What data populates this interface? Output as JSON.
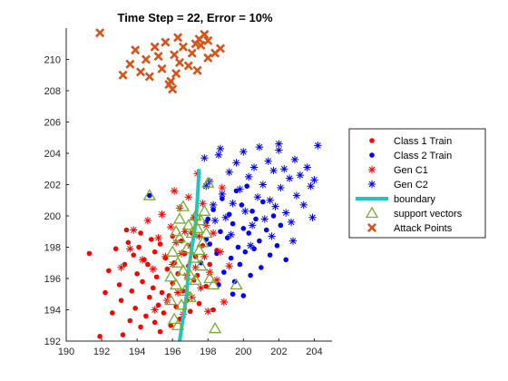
{
  "chart_data": {
    "type": "scatter",
    "title": "Time Step = 22, Error = 10%",
    "xlabel": "",
    "ylabel": "",
    "xlim": [
      190,
      205
    ],
    "ylim": [
      192,
      212
    ],
    "x_ticks": [
      190,
      192,
      194,
      196,
      198,
      200,
      202,
      204
    ],
    "y_ticks": [
      192,
      194,
      196,
      198,
      200,
      202,
      204,
      206,
      208,
      210
    ],
    "grid": false,
    "legend_position": "right",
    "legend": [
      "Class 1 Train",
      "Class 2 Train",
      "Gen C1",
      "Gen C2",
      "boundary",
      "support vectors",
      "Attack Points"
    ],
    "series": [
      {
        "name": "Class 1 Train",
        "marker": "dot",
        "color": "#ff0000",
        "points": [
          [
            191.3,
            197.6
          ],
          [
            191.9,
            192.3
          ],
          [
            192.2,
            195.1
          ],
          [
            192.4,
            196.5
          ],
          [
            192.6,
            193.8
          ],
          [
            192.8,
            197.9
          ],
          [
            193.0,
            195.6
          ],
          [
            193.1,
            194.6
          ],
          [
            193.2,
            192.4
          ],
          [
            193.3,
            196.9
          ],
          [
            193.5,
            198.3
          ],
          [
            193.6,
            193.3
          ],
          [
            193.7,
            195.2
          ],
          [
            193.8,
            197.5
          ],
          [
            193.9,
            194.1
          ],
          [
            194.0,
            196.3
          ],
          [
            194.1,
            198.0
          ],
          [
            194.2,
            192.9
          ],
          [
            194.3,
            195.8
          ],
          [
            194.4,
            197.2
          ],
          [
            194.5,
            193.6
          ],
          [
            194.6,
            196.9
          ],
          [
            194.7,
            194.8
          ],
          [
            194.8,
            198.5
          ],
          [
            194.9,
            195.4
          ],
          [
            195.0,
            193.2
          ],
          [
            195.0,
            197.7
          ],
          [
            195.1,
            196.1
          ],
          [
            195.2,
            194.3
          ],
          [
            195.3,
            198.2
          ],
          [
            195.4,
            195.1
          ],
          [
            195.5,
            193.8
          ],
          [
            195.6,
            197.3
          ],
          [
            195.7,
            196.6
          ],
          [
            195.8,
            194.9
          ],
          [
            195.9,
            193.0
          ],
          [
            196.0,
            198.7
          ],
          [
            196.0,
            195.7
          ],
          [
            196.1,
            197.0
          ],
          [
            196.2,
            194.2
          ],
          [
            196.3,
            196.3
          ],
          [
            196.4,
            193.4
          ],
          [
            196.5,
            198.4
          ],
          [
            196.6,
            195.2
          ],
          [
            196.7,
            197.6
          ],
          [
            196.8,
            194.6
          ],
          [
            196.9,
            196.8
          ],
          [
            197.0,
            193.9
          ],
          [
            197.1,
            198.9
          ],
          [
            197.2,
            195.9
          ],
          [
            197.3,
            197.4
          ],
          [
            197.4,
            196.2
          ],
          [
            197.5,
            194.4
          ],
          [
            197.7,
            198.1
          ],
          [
            197.9,
            195.5
          ],
          [
            198.1,
            196.9
          ],
          [
            198.3,
            194.0
          ],
          [
            198.5,
            197.8
          ],
          [
            195.3,
            192.6
          ],
          [
            194.2,
            198.9
          ],
          [
            193.4,
            199.1
          ]
        ]
      },
      {
        "name": "Class 2 Train",
        "marker": "dot",
        "color": "#0000ff",
        "points": [
          [
            194.7,
            201.3
          ],
          [
            197.6,
            197.0
          ],
          [
            197.9,
            199.6
          ],
          [
            198.1,
            198.2
          ],
          [
            198.3,
            200.4
          ],
          [
            198.5,
            197.6
          ],
          [
            198.7,
            199.0
          ],
          [
            198.8,
            201.1
          ],
          [
            198.9,
            196.4
          ],
          [
            199.1,
            198.6
          ],
          [
            199.2,
            200.1
          ],
          [
            199.3,
            197.3
          ],
          [
            199.4,
            199.5
          ],
          [
            199.5,
            195.8
          ],
          [
            199.6,
            201.6
          ],
          [
            199.7,
            198.0
          ],
          [
            199.8,
            196.9
          ],
          [
            199.9,
            200.7
          ],
          [
            200.0,
            199.2
          ],
          [
            200.1,
            197.7
          ],
          [
            200.2,
            201.9
          ],
          [
            200.3,
            198.9
          ],
          [
            200.4,
            196.2
          ],
          [
            200.5,
            200.3
          ],
          [
            200.6,
            197.9
          ],
          [
            200.7,
            199.8
          ],
          [
            200.9,
            198.4
          ],
          [
            201.0,
            196.7
          ],
          [
            201.1,
            200.9
          ],
          [
            201.3,
            199.1
          ],
          [
            201.5,
            197.5
          ],
          [
            201.7,
            200.0
          ],
          [
            201.9,
            198.1
          ],
          [
            202.1,
            199.4
          ],
          [
            202.4,
            197.2
          ],
          [
            200.0,
            194.9
          ],
          [
            199.4,
            195.0
          ],
          [
            198.6,
            195.6
          ],
          [
            197.9,
            198.5
          ],
          [
            198.0,
            199.8
          ]
        ]
      },
      {
        "name": "Gen C1",
        "marker": "star",
        "color": "#ff0000",
        "points": [
          [
            193.1,
            196.7
          ],
          [
            193.6,
            197.9
          ],
          [
            193.8,
            199.1
          ],
          [
            194.3,
            197.2
          ],
          [
            194.6,
            199.7
          ],
          [
            194.9,
            196.6
          ],
          [
            195.2,
            198.6
          ],
          [
            195.4,
            200.1
          ],
          [
            195.6,
            197.4
          ],
          [
            195.7,
            194.6
          ],
          [
            195.9,
            199.3
          ],
          [
            196.0,
            196.9
          ],
          [
            196.2,
            198.3
          ],
          [
            196.3,
            195.1
          ],
          [
            196.4,
            200.5
          ],
          [
            196.5,
            197.6
          ],
          [
            196.6,
            193.7
          ],
          [
            196.7,
            199.0
          ],
          [
            196.8,
            196.2
          ],
          [
            196.9,
            201.2
          ],
          [
            197.0,
            198.1
          ],
          [
            197.1,
            194.8
          ],
          [
            197.2,
            199.9
          ],
          [
            197.3,
            196.7
          ],
          [
            197.4,
            202.7
          ],
          [
            197.5,
            198.7
          ],
          [
            197.6,
            195.4
          ],
          [
            197.7,
            200.8
          ],
          [
            197.8,
            197.4
          ],
          [
            197.9,
            199.4
          ],
          [
            198.0,
            193.9
          ],
          [
            198.1,
            196.4
          ],
          [
            198.3,
            198.9
          ],
          [
            198.5,
            195.9
          ],
          [
            198.7,
            197.7
          ],
          [
            198.9,
            194.5
          ],
          [
            199.2,
            196.8
          ],
          [
            198.8,
            201.8
          ],
          [
            196.1,
            201.6
          ],
          [
            195.0,
            194.0
          ]
        ]
      },
      {
        "name": "Gen C2",
        "marker": "star",
        "color": "#0000ff",
        "points": [
          [
            197.8,
            203.7
          ],
          [
            198.1,
            202.2
          ],
          [
            198.3,
            200.7
          ],
          [
            198.6,
            203.9
          ],
          [
            198.8,
            201.4
          ],
          [
            199.0,
            199.9
          ],
          [
            199.2,
            202.8
          ],
          [
            199.4,
            200.8
          ],
          [
            199.6,
            203.4
          ],
          [
            199.8,
            201.7
          ],
          [
            200.0,
            204.1
          ],
          [
            200.1,
            200.3
          ],
          [
            200.3,
            202.5
          ],
          [
            200.5,
            199.4
          ],
          [
            200.6,
            203.1
          ],
          [
            200.8,
            201.2
          ],
          [
            200.9,
            204.4
          ],
          [
            201.1,
            202.0
          ],
          [
            201.2,
            199.8
          ],
          [
            201.4,
            203.5
          ],
          [
            201.5,
            201.0
          ],
          [
            201.7,
            202.9
          ],
          [
            201.8,
            200.6
          ],
          [
            202.0,
            204.2
          ],
          [
            202.1,
            201.8
          ],
          [
            202.3,
            203.0
          ],
          [
            202.4,
            200.2
          ],
          [
            202.6,
            202.4
          ],
          [
            202.7,
            199.6
          ],
          [
            202.9,
            203.6
          ],
          [
            203.0,
            201.3
          ],
          [
            203.2,
            202.6
          ],
          [
            203.4,
            200.7
          ],
          [
            203.6,
            203.1
          ],
          [
            203.8,
            201.9
          ],
          [
            204.0,
            202.3
          ],
          [
            204.2,
            204.5
          ],
          [
            202.0,
            204.6
          ],
          [
            201.6,
            198.7
          ],
          [
            200.4,
            198.1
          ],
          [
            199.3,
            198.8
          ],
          [
            198.4,
            199.7
          ],
          [
            197.9,
            201.9
          ],
          [
            198.7,
            204.3
          ],
          [
            202.8,
            198.4
          ],
          [
            203.9,
            199.9
          ]
        ]
      },
      {
        "name": "boundary",
        "marker": "line",
        "color": "#1ec6c0",
        "points": [
          [
            196.4,
            192.0
          ],
          [
            196.6,
            193.5
          ],
          [
            196.8,
            195.0
          ],
          [
            196.9,
            196.5
          ],
          [
            197.1,
            198.0
          ],
          [
            197.3,
            199.5
          ],
          [
            197.4,
            201.0
          ],
          [
            197.5,
            203.0
          ]
        ]
      },
      {
        "name": "support vectors",
        "marker": "triangle",
        "color": "#77ac30",
        "points": [
          [
            194.7,
            201.3
          ],
          [
            195.9,
            196.1
          ],
          [
            195.9,
            194.6
          ],
          [
            196.0,
            197.7
          ],
          [
            196.1,
            193.4
          ],
          [
            196.2,
            199.0
          ],
          [
            196.2,
            195.6
          ],
          [
            196.3,
            197.0
          ],
          [
            196.3,
            193.0
          ],
          [
            196.4,
            198.6
          ],
          [
            196.5,
            194.3
          ],
          [
            196.6,
            200.6
          ],
          [
            196.6,
            196.5
          ],
          [
            196.7,
            195.2
          ],
          [
            196.8,
            197.9
          ],
          [
            196.9,
            199.4
          ],
          [
            197.0,
            194.8
          ],
          [
            197.0,
            196.2
          ],
          [
            197.1,
            198.9
          ],
          [
            197.2,
            197.3
          ],
          [
            197.3,
            200.0
          ],
          [
            197.3,
            195.9
          ],
          [
            197.4,
            199.2
          ],
          [
            197.5,
            197.8
          ],
          [
            197.6,
            196.8
          ],
          [
            197.6,
            199.7
          ],
          [
            197.7,
            198.3
          ],
          [
            197.8,
            200.3
          ],
          [
            198.0,
            202.1
          ],
          [
            198.1,
            196.0
          ],
          [
            198.3,
            195.6
          ],
          [
            198.4,
            192.8
          ],
          [
            199.6,
            195.6
          ],
          [
            197.9,
            198.9
          ],
          [
            196.4,
            199.8
          ]
        ]
      },
      {
        "name": "Attack Points",
        "marker": "x",
        "color": "#d95319",
        "points": [
          [
            191.9,
            211.7
          ],
          [
            193.2,
            209.0
          ],
          [
            193.6,
            209.7
          ],
          [
            193.9,
            210.6
          ],
          [
            194.2,
            209.2
          ],
          [
            194.5,
            210.0
          ],
          [
            194.7,
            208.9
          ],
          [
            195.0,
            210.8
          ],
          [
            195.2,
            210.2
          ],
          [
            195.4,
            209.4
          ],
          [
            195.6,
            211.1
          ],
          [
            195.9,
            208.6
          ],
          [
            196.0,
            208.1
          ],
          [
            196.1,
            210.3
          ],
          [
            196.2,
            209.1
          ],
          [
            196.3,
            211.4
          ],
          [
            196.4,
            209.8
          ],
          [
            196.6,
            210.8
          ],
          [
            196.9,
            209.6
          ],
          [
            197.1,
            210.4
          ],
          [
            197.3,
            211.0
          ],
          [
            197.4,
            209.3
          ],
          [
            197.6,
            210.9
          ],
          [
            197.8,
            211.6
          ],
          [
            198.0,
            211.2
          ],
          [
            198.4,
            210.4
          ],
          [
            198.7,
            210.7
          ],
          [
            198.0,
            210.1
          ],
          [
            197.5,
            211.3
          ],
          [
            195.8,
            208.4
          ]
        ]
      }
    ]
  }
}
